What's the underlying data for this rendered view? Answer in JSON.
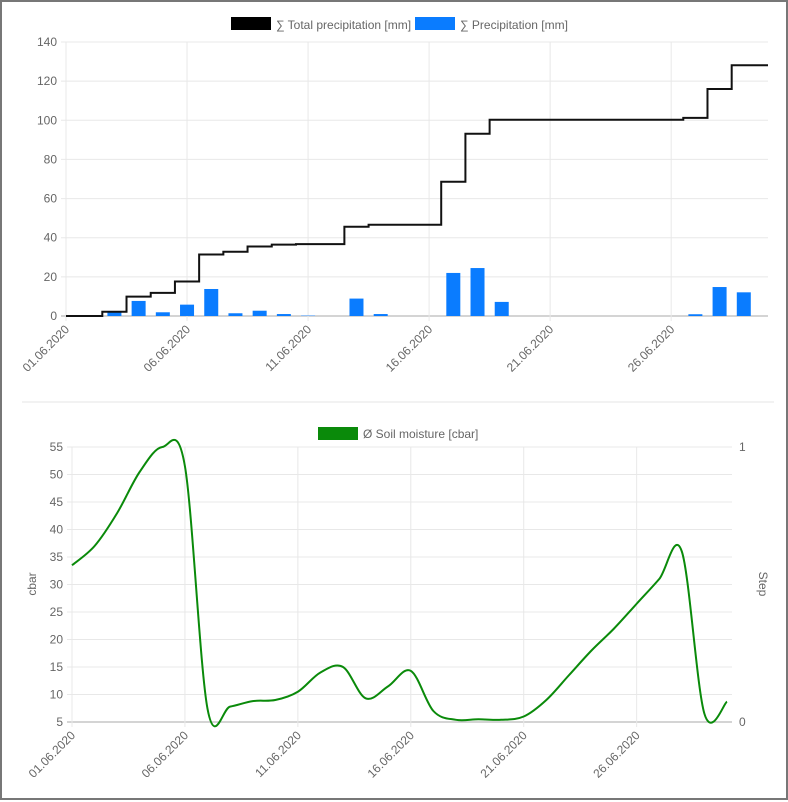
{
  "chart_data": [
    {
      "type": "bar",
      "title": "",
      "legend_position": "top",
      "x": [
        "01.06.2020",
        "02.06.2020",
        "03.06.2020",
        "04.06.2020",
        "05.06.2020",
        "06.06.2020",
        "07.06.2020",
        "08.06.2020",
        "09.06.2020",
        "10.06.2020",
        "11.06.2020",
        "12.06.2020",
        "13.06.2020",
        "14.06.2020",
        "15.06.2020",
        "16.06.2020",
        "17.06.2020",
        "18.06.2020",
        "19.06.2020",
        "20.06.2020",
        "21.06.2020",
        "22.06.2020",
        "23.06.2020",
        "24.06.2020",
        "25.06.2020",
        "26.06.2020",
        "27.06.2020",
        "28.06.2020",
        "29.06.2020",
        "30.06.2020"
      ],
      "x_tick_labels": [
        "01.06.2020",
        "06.06.2020",
        "11.06.2020",
        "16.06.2020",
        "21.06.2020",
        "26.06.2020"
      ],
      "y_ticks": [
        "0",
        "20",
        "40",
        "60",
        "80",
        "100",
        "120",
        "140"
      ],
      "ylim": [
        0,
        140
      ],
      "grid": true,
      "series": [
        {
          "name": "∑ Total precipitation [mm]",
          "type": "line-stepped",
          "color": "#000000",
          "values": [
            0,
            0,
            2.2,
            9.9,
            11.8,
            17.6,
            31.4,
            32.8,
            35.5,
            36.5,
            36.7,
            36.7,
            45.6,
            46.6,
            46.6,
            46.6,
            68.6,
            93.1,
            100.3,
            100.3,
            100.3,
            100.3,
            100.3,
            100.3,
            100.3,
            100.3,
            101.2,
            116,
            128.1,
            128.1
          ]
        },
        {
          "name": "∑ Precipitation [mm]",
          "type": "bar",
          "color": "#0a7cff",
          "values": [
            0,
            0,
            2.2,
            7.7,
            1.9,
            5.8,
            13.8,
            1.4,
            2.7,
            1,
            0.2,
            0,
            8.9,
            1,
            0,
            0,
            22,
            24.5,
            7.2,
            0,
            0,
            0,
            0,
            0,
            0,
            0,
            0.9,
            14.8,
            12.1,
            0
          ]
        }
      ]
    },
    {
      "type": "line",
      "legend_position": "top",
      "ylabel": "cbar",
      "y2label": "Step",
      "x_tick_labels": [
        "01.06.2020",
        "06.06.2020",
        "11.06.2020",
        "16.06.2020",
        "21.06.2020",
        "26.06.2020"
      ],
      "y_ticks": [
        "5",
        "10",
        "15",
        "20",
        "25",
        "30",
        "35",
        "40",
        "45",
        "50",
        "55"
      ],
      "y2_ticks": [
        "0",
        "1"
      ],
      "ylim": [
        5,
        55
      ],
      "y2lim": [
        0,
        1
      ],
      "grid": true,
      "series": [
        {
          "name": "Ø Soil moisture [cbar]",
          "color": "#0a8a0a",
          "values": [
            33.5,
            37,
            43,
            50.5,
            55,
            51.5,
            7.4,
            7.8,
            8.8,
            9,
            10.5,
            14,
            15,
            9.3,
            11.5,
            14.3,
            7,
            5.4,
            5.5,
            5.4,
            6,
            9,
            13.5,
            18,
            22,
            26.5,
            31,
            36,
            6.5,
            8.7
          ]
        }
      ]
    }
  ]
}
